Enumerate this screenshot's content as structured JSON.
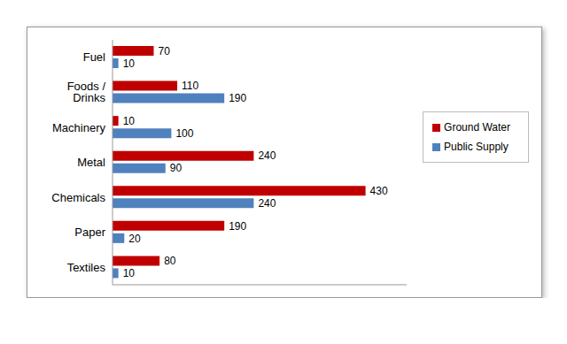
{
  "chart_data": {
    "type": "bar",
    "orientation": "horizontal",
    "categories": [
      "Fuel",
      "Foods / Drinks",
      "Machinery",
      "Metal",
      "Chemicals",
      "Paper",
      "Textiles"
    ],
    "series": [
      {
        "name": "Ground Water",
        "color": "#c00000",
        "values": [
          70,
          110,
          10,
          240,
          430,
          190,
          80
        ]
      },
      {
        "name": "Public Supply",
        "color": "#4f81bd",
        "values": [
          10,
          190,
          100,
          90,
          240,
          20,
          10
        ]
      }
    ],
    "xlim": [
      0,
      500
    ],
    "tick_labels": "y",
    "data_labels": true,
    "legend": "right",
    "grid": false
  }
}
